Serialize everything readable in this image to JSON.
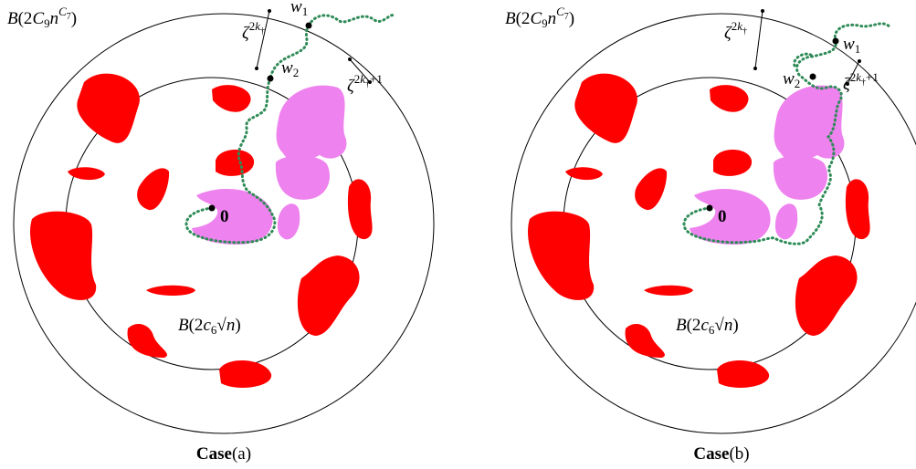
{
  "panels": [
    {
      "outer_label": [
        "B",
        "(2",
        "C",
        "9",
        "n",
        "C",
        "7",
        ")"
      ],
      "inner_label": [
        "B",
        "(2",
        "c",
        "6",
        "√",
        "n",
        ")"
      ],
      "zeta1": [
        "ζ",
        "2",
        "k",
        "†"
      ],
      "zeta2": [
        "ζ",
        "2",
        "k",
        "†",
        "+1"
      ],
      "w1": [
        "w",
        "1"
      ],
      "w2": [
        "w",
        "2"
      ],
      "origin": "0",
      "caption": [
        "Case",
        "(a)"
      ]
    },
    {
      "outer_label": [
        "B",
        "(2",
        "C",
        "9",
        "n",
        "C",
        "7",
        ")"
      ],
      "inner_label": [
        "B",
        "(2",
        "c",
        "6",
        "√",
        "n",
        ")"
      ],
      "zeta1": [
        "ζ",
        "2",
        "k",
        "†"
      ],
      "zeta2": [
        "ζ",
        "2",
        "k",
        "†",
        "+1"
      ],
      "w1": [
        "w",
        "1"
      ],
      "w2": [
        "w",
        "2"
      ],
      "origin": "0",
      "caption": [
        "Case",
        "(b)"
      ]
    }
  ]
}
